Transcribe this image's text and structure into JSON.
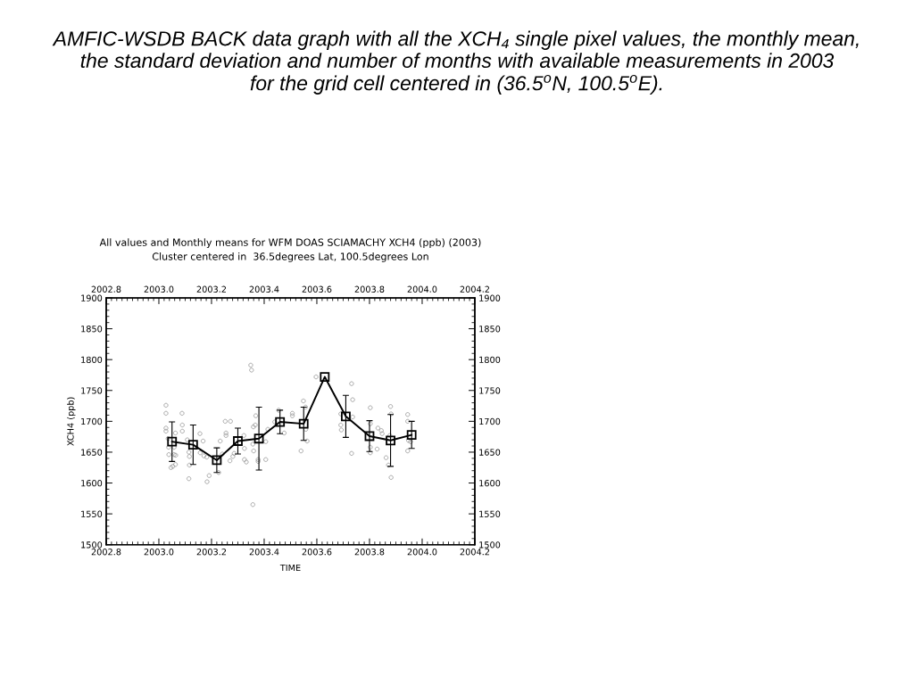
{
  "chart_data": {
    "type": "scatter",
    "title": "AMFIC-WSDB BACK data graph with all the XCH₄ single pixel values, the monthly mean,\nthe standard deviation and number of months with available measurements in 2003\nfor the grid cell centered in (36.5$^{o}$N, 100.5$^{o}$E).",
    "subtitle": "All values and Monthly means for WFM DOAS SCIAMACHY XCH4 (ppb) (2003)\nCluster centered in  36.5degrees Lat, 100.5degrees Lon",
    "xlabel": "TIME",
    "ylabel": "XCH4 (ppb)",
    "xlim": [
      2002.8,
      2004.2
    ],
    "xticks": [
      2002.8,
      {
        "value": 2003,
        "label": "2003.0"
      },
      2003.2,
      2003.4,
      2003.6,
      2003.8,
      {
        "value": 2004,
        "label": "2004.0"
      },
      2004.2
    ],
    "x2lim": [
      2002.8,
      2004.2
    ],
    "x2ticks": [
      2002.8,
      {
        "value": 2003,
        "label": "2003.0"
      },
      2003.2,
      2003.4,
      2003.6,
      2003.8,
      {
        "value": 2004,
        "label": "2004.0"
      },
      2004.2
    ],
    "ylim": [
      1500,
      1900
    ],
    "yticks": [
      1500,
      1550,
      1600,
      1650,
      1700,
      1750,
      1800,
      1850,
      1900
    ],
    "y2lim": [
      1500,
      1900
    ],
    "y2ticks": [
      1500,
      1550,
      1600,
      1650,
      1700,
      1750,
      1800,
      1850,
      1900
    ],
    "series": [
      {
        "marker": "circle",
        "color": "#999999",
        "x": [
          2003.027,
          2003.027,
          2003.027,
          2003.027,
          2003.035,
          2003.037,
          2003.038,
          2003.058,
          2003.064,
          2003.046,
          2003.053,
          2003.063,
          2003.063,
          2003.058,
          2003.088,
          2003.089,
          2003.089,
          2003.108,
          2003.114,
          2003.116,
          2003.116,
          2003.114,
          2003.156,
          2003.168,
          2003.157,
          2003.171,
          2003.182,
          2003.191,
          2003.183,
          2003.227,
          2003.233,
          2003.252,
          2003.272,
          2003.255,
          2003.255,
          2003.241,
          2003.27,
          2003.281,
          2003.286,
          2003.323,
          2003.325,
          2003.325,
          2003.332,
          2003.349,
          2003.352,
          2003.357,
          2003.36,
          2003.359,
          2003.366,
          2003.368,
          2003.357,
          2003.377,
          2003.377,
          2003.406,
          2003.406,
          2003.414,
          2003.44,
          2003.455,
          2003.476,
          2003.507,
          2003.507,
          2003.54,
          2003.549,
          2003.557,
          2003.558,
          2003.563,
          2003.597,
          2003.691,
          2003.691,
          2003.693,
          2003.732,
          2003.736,
          2003.736,
          2003.732,
          2003.803,
          2003.803,
          2003.803,
          2003.803,
          2003.829,
          2003.832,
          2003.845,
          2003.848,
          2003.863,
          2003.872,
          2003.88,
          2003.882,
          2003.877,
          2003.882,
          2003.945,
          2003.945,
          2003.948,
          2003.956,
          2003.945
        ],
        "values": [
          1726,
          1713,
          1689,
          1684,
          1672,
          1658,
          1646,
          1646,
          1645,
          1625,
          1627,
          1630,
          1681,
          1658,
          1713,
          1694,
          1684,
          1670,
          1650,
          1643,
          1629,
          1607,
          1680,
          1668,
          1649,
          1644,
          1642,
          1612,
          1602,
          1617,
          1668,
          1700,
          1700,
          1681,
          1677,
          1647,
          1636,
          1643,
          1648,
          1677,
          1656,
          1638,
          1634,
          1791,
          1783,
          1663,
          1652,
          1691,
          1694,
          1709,
          1565,
          1638,
          1635,
          1667,
          1638,
          1687,
          1699,
          1718,
          1681,
          1713,
          1709,
          1652,
          1733,
          1723,
          1687,
          1668,
          1772,
          1712,
          1694,
          1686,
          1761,
          1735,
          1707,
          1648,
          1722,
          1696,
          1658,
          1649,
          1655,
          1689,
          1685,
          1680,
          1641,
          1629,
          1724,
          1712,
          1677,
          1609,
          1711,
          1700,
          1669,
          1667,
          1652
        ]
      },
      {
        "type": "line",
        "marker": "square",
        "line_style": "solid",
        "color": "#000000",
        "x": [
          2003.05,
          2003.13,
          2003.22,
          2003.3,
          2003.38,
          2003.46,
          2003.55,
          2003.63,
          2003.71,
          2003.8,
          2003.88,
          2003.96
        ],
        "values": [
          1667,
          1662,
          1637,
          1668,
          1672,
          1699,
          1696,
          1772,
          1708,
          1676,
          1669,
          1678
        ],
        "errors": [
          32,
          32,
          20,
          21,
          51,
          19,
          27,
          null,
          34,
          25,
          42,
          22
        ]
      }
    ]
  }
}
